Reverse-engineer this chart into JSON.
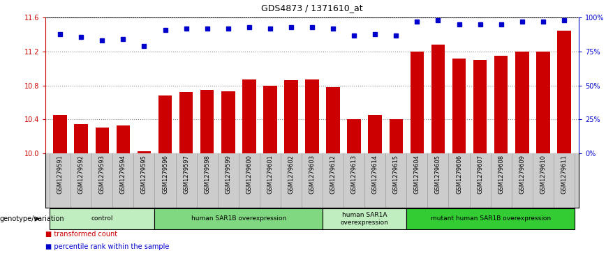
{
  "title": "GDS4873 / 1371610_at",
  "samples": [
    "GSM1279591",
    "GSM1279592",
    "GSM1279593",
    "GSM1279594",
    "GSM1279595",
    "GSM1279596",
    "GSM1279597",
    "GSM1279598",
    "GSM1279599",
    "GSM1279600",
    "GSM1279601",
    "GSM1279602",
    "GSM1279603",
    "GSM1279612",
    "GSM1279613",
    "GSM1279614",
    "GSM1279615",
    "GSM1279604",
    "GSM1279605",
    "GSM1279606",
    "GSM1279607",
    "GSM1279608",
    "GSM1279609",
    "GSM1279610",
    "GSM1279611"
  ],
  "bar_values": [
    10.45,
    10.34,
    10.3,
    10.33,
    10.02,
    10.68,
    10.72,
    10.75,
    10.73,
    10.87,
    10.8,
    10.86,
    10.87,
    10.78,
    10.4,
    10.45,
    10.4,
    11.2,
    11.28,
    11.12,
    11.1,
    11.15,
    11.2,
    11.2,
    11.45
  ],
  "percentile_values": [
    88,
    86,
    83,
    84,
    79,
    91,
    92,
    92,
    92,
    93,
    92,
    93,
    93,
    92,
    87,
    88,
    87,
    97,
    98,
    95,
    95,
    95,
    97,
    97,
    98
  ],
  "bar_color": "#cc0000",
  "percentile_color": "#0000cc",
  "ylim_left": [
    10.0,
    11.6
  ],
  "ylim_right": [
    0,
    100
  ],
  "yticks_left": [
    10.0,
    10.4,
    10.8,
    11.2,
    11.6
  ],
  "yticks_right": [
    0,
    25,
    50,
    75,
    100
  ],
  "ytick_labels_right": [
    "0%",
    "25%",
    "50%",
    "75%",
    "100%"
  ],
  "groups": [
    {
      "label": "control",
      "start": 0,
      "end": 4,
      "color": "#c0eec0"
    },
    {
      "label": "human SAR1B overexpression",
      "start": 5,
      "end": 12,
      "color": "#80d880"
    },
    {
      "label": "human SAR1A\noverexpression",
      "start": 13,
      "end": 16,
      "color": "#c0eec0"
    },
    {
      "label": "mutant human SAR1B overexpression",
      "start": 17,
      "end": 24,
      "color": "#33cc33"
    }
  ],
  "genotype_label": "genotype/variation",
  "bar_color_legend": "transformed count",
  "pct_color_legend": "percentile rank within the sample",
  "bar_width": 0.65,
  "percentile_marker_size": 5,
  "cell_bg_color": "#cccccc",
  "cell_line_color": "#999999"
}
